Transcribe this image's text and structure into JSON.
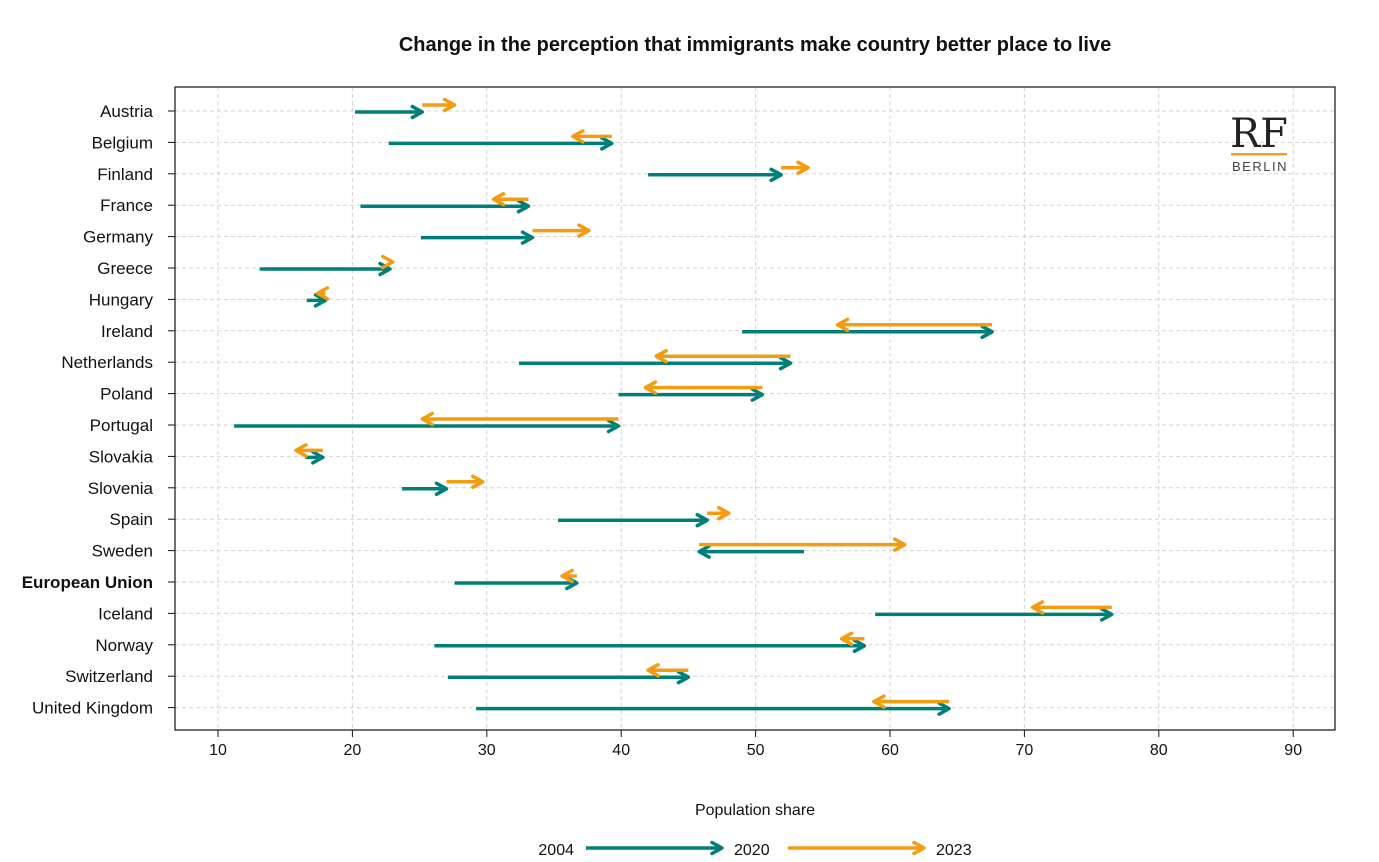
{
  "chart_data": {
    "type": "arrow",
    "title": "Change in the perception that immigrants make country better place to live",
    "xlabel": "Population share",
    "ylabel": "",
    "xlim": [
      7,
      93
    ],
    "xticks": [
      10,
      20,
      30,
      40,
      50,
      60,
      70,
      80,
      90
    ],
    "grid": true,
    "legend_position": "bottom",
    "legend": [
      "2004",
      "2020",
      "2023"
    ],
    "colors": {
      "2004_to_2020": "#007f7a",
      "2020_to_2023": "#f39c12"
    },
    "rows": [
      {
        "country": "Austria",
        "v2004": 20.2,
        "v2020": 25.2,
        "v2023": 27.6
      },
      {
        "country": "Belgium",
        "v2004": 22.7,
        "v2020": 39.3,
        "v2023": 36.4
      },
      {
        "country": "Finland",
        "v2004": 42.0,
        "v2020": 51.9,
        "v2023": 53.9
      },
      {
        "country": "France",
        "v2004": 20.6,
        "v2020": 33.1,
        "v2023": 30.5
      },
      {
        "country": "Germany",
        "v2004": 25.1,
        "v2020": 33.4,
        "v2023": 37.6
      },
      {
        "country": "Greece",
        "v2004": 13.1,
        "v2020": 22.8,
        "v2023": 23.0
      },
      {
        "country": "Hungary",
        "v2004": 16.6,
        "v2020": 18.0,
        "v2023": 17.4
      },
      {
        "country": "Ireland",
        "v2004": 49.0,
        "v2020": 67.6,
        "v2023": 56.1
      },
      {
        "country": "Netherlands",
        "v2004": 32.4,
        "v2020": 52.6,
        "v2023": 42.6
      },
      {
        "country": "Poland",
        "v2004": 39.8,
        "v2020": 50.5,
        "v2023": 41.8
      },
      {
        "country": "Portugal",
        "v2004": 11.2,
        "v2020": 39.8,
        "v2023": 25.2
      },
      {
        "country": "Slovakia",
        "v2004": 16.5,
        "v2020": 17.8,
        "v2023": 15.8
      },
      {
        "country": "Slovenia",
        "v2004": 23.7,
        "v2020": 27.0,
        "v2023": 29.7
      },
      {
        "country": "Spain",
        "v2004": 35.3,
        "v2020": 46.4,
        "v2023": 48.0
      },
      {
        "country": "Sweden",
        "v2004": 53.6,
        "v2020": 45.8,
        "v2023": 61.1
      },
      {
        "country": "European Union",
        "v2004": 27.6,
        "v2020": 36.7,
        "v2023": 35.6,
        "bold": true
      },
      {
        "country": "Iceland",
        "v2004": 58.9,
        "v2020": 76.5,
        "v2023": 70.6
      },
      {
        "country": "Norway",
        "v2004": 26.1,
        "v2020": 58.1,
        "v2023": 56.4
      },
      {
        "country": "Switzerland",
        "v2004": 27.1,
        "v2020": 45.0,
        "v2023": 42.0
      },
      {
        "country": "United Kingdom",
        "v2004": 29.2,
        "v2020": 64.4,
        "v2023": 58.8
      }
    ]
  },
  "logo": {
    "main": "RF",
    "sub": "BERLIN",
    "accent": "#e8a320"
  }
}
